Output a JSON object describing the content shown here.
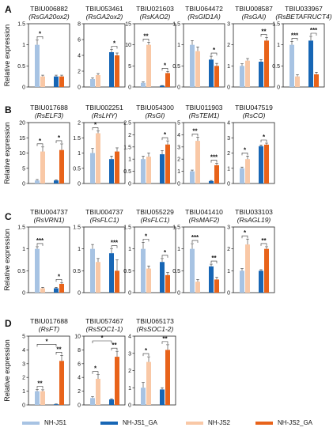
{
  "colors": {
    "NH-JS1": "#a7c3e3",
    "NH-JS1_GA": "#1766b5",
    "NH-JS2": "#f9c8a6",
    "NH-JS2_GA": "#e8631a"
  },
  "y_axis_label": "Relative expression",
  "legend": [
    "NH-JS1",
    "NH-JS1_GA",
    "NH-JS2",
    "NH-JS2_GA"
  ],
  "chart_data": [
    {
      "panel": "A",
      "type": "bar",
      "title": "TBIU006882",
      "subtitle": "(RsGA20ox2)",
      "categories": [
        "NH-JS1",
        "NH-JS1_GA",
        "NH-JS2",
        "NH-JS2_GA"
      ],
      "values": [
        1.0,
        0.25,
        0.25,
        0.25
      ],
      "errors": [
        0.12,
        0.03,
        0.03,
        0.03
      ],
      "ylim": [
        0,
        1.5
      ],
      "yticks": [
        0,
        0.5,
        1,
        1.5
      ],
      "significance": [
        {
          "a": 0,
          "b": 2,
          "label": "*"
        }
      ]
    },
    {
      "panel": "A",
      "type": "bar",
      "title": "TBIU053461",
      "subtitle": "(RsGA2ox2)",
      "categories": [
        "NH-JS1",
        "NH-JS1_GA",
        "NH-JS2",
        "NH-JS2_GA"
      ],
      "values": [
        1.0,
        4.4,
        1.5,
        4.0
      ],
      "errors": [
        0.15,
        0.35,
        0.2,
        0.3
      ],
      "ylim": [
        0,
        8
      ],
      "yticks": [
        0,
        2,
        4,
        6,
        8
      ],
      "significance": [
        {
          "a": 1,
          "b": 3,
          "label": "*"
        }
      ]
    },
    {
      "panel": "A",
      "type": "bar",
      "title": "TBIU021603",
      "subtitle": "(RsKAO2)",
      "categories": [
        "NH-JS1",
        "NH-JS1_GA",
        "NH-JS2",
        "NH-JS2_GA"
      ],
      "values": [
        1.0,
        0.3,
        10.0,
        3.3
      ],
      "errors": [
        0.2,
        0.05,
        0.6,
        0.4
      ],
      "ylim": [
        0,
        15
      ],
      "yticks": [
        0,
        5,
        10,
        15
      ],
      "significance": [
        {
          "a": 0,
          "b": 2,
          "label": "**"
        },
        {
          "a": 1,
          "b": 3,
          "label": "*"
        }
      ]
    },
    {
      "panel": "A",
      "type": "bar",
      "title": "TBIU064472",
      "subtitle": "(RsGID1A)",
      "categories": [
        "NH-JS1",
        "NH-JS1_GA",
        "NH-JS2",
        "NH-JS2_GA"
      ],
      "values": [
        1.0,
        0.65,
        0.85,
        0.5
      ],
      "errors": [
        0.1,
        0.08,
        0.1,
        0.06
      ],
      "ylim": [
        0,
        1.5
      ],
      "yticks": [
        0,
        0.5,
        1,
        1.5
      ],
      "significance": [
        {
          "a": 1,
          "b": 3,
          "label": "*"
        }
      ]
    },
    {
      "panel": "A",
      "type": "bar",
      "title": "TBIU008587",
      "subtitle": "(RsGAI)",
      "categories": [
        "NH-JS1",
        "NH-JS1_GA",
        "NH-JS2",
        "NH-JS2_GA"
      ],
      "values": [
        1.0,
        1.2,
        1.25,
        2.2
      ],
      "errors": [
        0.1,
        0.1,
        0.1,
        0.15
      ],
      "ylim": [
        0,
        3
      ],
      "yticks": [
        0,
        1,
        2,
        3
      ],
      "significance": [
        {
          "a": 1,
          "b": 3,
          "label": "**"
        }
      ]
    },
    {
      "panel": "A",
      "type": "bar",
      "title": "TBIU033967",
      "subtitle": "(RsBETAFRUCT4)",
      "categories": [
        "NH-JS1",
        "NH-JS1_GA",
        "NH-JS2",
        "NH-JS2_GA"
      ],
      "values": [
        1.0,
        1.1,
        0.25,
        0.3
      ],
      "errors": [
        0.08,
        0.1,
        0.04,
        0.05
      ],
      "ylim": [
        0,
        1.5
      ],
      "yticks": [
        0,
        0.5,
        1,
        1.5
      ],
      "significance": [
        {
          "a": 0,
          "b": 2,
          "label": "***"
        },
        {
          "a": 1,
          "b": 3,
          "label": "***"
        }
      ]
    },
    {
      "panel": "B",
      "type": "bar",
      "title": "TBIU017688",
      "subtitle": "(RsELF3)",
      "categories": [
        "NH-JS1",
        "NH-JS1_GA",
        "NH-JS2",
        "NH-JS2_GA"
      ],
      "values": [
        1.0,
        1.0,
        10.5,
        11.0
      ],
      "errors": [
        0.3,
        0.2,
        1.5,
        2.0
      ],
      "ylim": [
        0,
        20
      ],
      "yticks": [
        0,
        5,
        10,
        15,
        20
      ],
      "significance": [
        {
          "a": 0,
          "b": 2,
          "label": "*"
        },
        {
          "a": 1,
          "b": 3,
          "label": "*"
        }
      ]
    },
    {
      "panel": "B",
      "type": "bar",
      "title": "TBIU002251",
      "subtitle": "(RsLHY)",
      "categories": [
        "NH-JS1",
        "NH-JS1_GA",
        "NH-JS2",
        "NH-JS2_GA"
      ],
      "values": [
        1.0,
        0.8,
        1.65,
        1.05
      ],
      "errors": [
        0.15,
        0.1,
        0.08,
        0.12
      ],
      "ylim": [
        0,
        2
      ],
      "yticks": [
        0,
        0.5,
        1,
        1.5,
        2
      ],
      "significance": [
        {
          "a": 0,
          "b": 2,
          "label": "*"
        }
      ]
    },
    {
      "panel": "B",
      "type": "bar",
      "title": "TBIU054300",
      "subtitle": "(RsGI)",
      "categories": [
        "NH-JS1",
        "NH-JS1_GA",
        "NH-JS2",
        "NH-JS2_GA"
      ],
      "values": [
        1.0,
        1.2,
        1.1,
        1.6
      ],
      "errors": [
        0.12,
        0.15,
        0.15,
        0.15
      ],
      "ylim": [
        0,
        2.5
      ],
      "yticks": [
        0,
        0.5,
        1,
        1.5,
        2,
        2.5
      ],
      "significance": [
        {
          "a": 1,
          "b": 3,
          "label": "*"
        }
      ]
    },
    {
      "panel": "B",
      "type": "bar",
      "title": "TBIU011903",
      "subtitle": "(RsTEM1)",
      "categories": [
        "NH-JS1",
        "NH-JS1_GA",
        "NH-JS2",
        "NH-JS2_GA"
      ],
      "values": [
        1.0,
        0.2,
        3.5,
        1.5
      ],
      "errors": [
        0.1,
        0.05,
        0.3,
        0.15
      ],
      "ylim": [
        0,
        5
      ],
      "yticks": [
        0,
        1,
        2,
        3,
        4,
        5
      ],
      "significance": [
        {
          "a": 0,
          "b": 2,
          "label": "**"
        },
        {
          "a": 1,
          "b": 3,
          "label": "***"
        }
      ]
    },
    {
      "panel": "B",
      "type": "bar",
      "title": "TBIU047519",
      "subtitle": "(RsCO)",
      "categories": [
        "NH-JS1",
        "NH-JS1_GA",
        "NH-JS2",
        "NH-JS2_GA"
      ],
      "values": [
        1.0,
        2.45,
        1.6,
        2.55
      ],
      "errors": [
        0.08,
        0.08,
        0.2,
        0.1
      ],
      "ylim": [
        0,
        4
      ],
      "yticks": [
        0,
        1,
        2,
        3,
        4
      ],
      "significance": [
        {
          "a": 0,
          "b": 2,
          "label": "*"
        },
        {
          "a": 1,
          "b": 3,
          "label": "*"
        }
      ]
    },
    {
      "panel": "C",
      "type": "bar",
      "title": "TBIU004737",
      "subtitle": "(RsVRN1)",
      "categories": [
        "NH-JS1",
        "NH-JS1_GA",
        "NH-JS2",
        "NH-JS2_GA"
      ],
      "values": [
        1.0,
        0.1,
        0.1,
        0.2
      ],
      "errors": [
        0.05,
        0.02,
        0.02,
        0.03
      ],
      "ylim": [
        0,
        1.5
      ],
      "yticks": [
        0,
        0.5,
        1,
        1.5
      ],
      "significance": [
        {
          "a": 0,
          "b": 2,
          "label": "***"
        },
        {
          "a": 1,
          "b": 3,
          "label": "*"
        }
      ]
    },
    {
      "panel": "C",
      "type": "bar",
      "title": "TBIU004737",
      "subtitle": "(RsFLC1)",
      "categories": [
        "NH-JS1",
        "NH-JS1_GA",
        "NH-JS2",
        "NH-JS2_GA"
      ],
      "values": [
        1.0,
        0.9,
        0.7,
        0.5
      ],
      "errors": [
        0.1,
        0.1,
        0.08,
        0.25
      ],
      "ylim": [
        0,
        1.5
      ],
      "yticks": [
        0,
        0.5,
        1,
        1.5
      ],
      "significance": [
        {
          "a": 1,
          "b": 3,
          "label": "***"
        }
      ]
    },
    {
      "panel": "C",
      "type": "bar",
      "title": "TBIU055229",
      "subtitle": "(RsFLC1)",
      "categories": [
        "NH-JS1",
        "NH-JS1_GA",
        "NH-JS2",
        "NH-JS2_GA"
      ],
      "values": [
        1.0,
        0.7,
        0.55,
        0.4
      ],
      "errors": [
        0.15,
        0.08,
        0.06,
        0.06
      ],
      "ylim": [
        0,
        1.5
      ],
      "yticks": [
        0,
        0.5,
        1,
        1.5
      ],
      "significance": [
        {
          "a": 0,
          "b": 2,
          "label": "*"
        },
        {
          "a": 1,
          "b": 3,
          "label": "*"
        }
      ]
    },
    {
      "panel": "C",
      "type": "bar",
      "title": "TBIU041410",
      "subtitle": "(RsMAF2)",
      "categories": [
        "NH-JS1",
        "NH-JS1_GA",
        "NH-JS2",
        "NH-JS2_GA"
      ],
      "values": [
        1.0,
        0.6,
        0.25,
        0.3
      ],
      "errors": [
        0.12,
        0.05,
        0.05,
        0.05
      ],
      "ylim": [
        0,
        1.5
      ],
      "yticks": [
        0,
        0.5,
        1,
        1.5
      ],
      "significance": [
        {
          "a": 0,
          "b": 2,
          "label": "***"
        },
        {
          "a": 1,
          "b": 3,
          "label": "**"
        }
      ]
    },
    {
      "panel": "C",
      "type": "bar",
      "title": "TBIU033103",
      "subtitle": "(RsAGL19)",
      "categories": [
        "NH-JS1",
        "NH-JS1_GA",
        "NH-JS2",
        "NH-JS2_GA"
      ],
      "values": [
        1.0,
        1.0,
        2.2,
        2.0
      ],
      "errors": [
        0.1,
        0.05,
        0.25,
        0.1
      ],
      "ylim": [
        0,
        3
      ],
      "yticks": [
        0,
        1,
        2,
        3
      ],
      "significance": [
        {
          "a": 0,
          "b": 2,
          "label": "*"
        },
        {
          "a": 1,
          "b": 3,
          "label": "**"
        }
      ]
    },
    {
      "panel": "D",
      "type": "bar",
      "title": "TBIU017688",
      "subtitle": "(RsFT)",
      "categories": [
        "NH-JS1",
        "NH-JS1_GA",
        "NH-JS2",
        "NH-JS2_GA"
      ],
      "values": [
        1.0,
        0.05,
        1.0,
        3.2
      ],
      "errors": [
        0.12,
        0.02,
        0.1,
        0.4
      ],
      "ylim": [
        0,
        5
      ],
      "yticks": [
        0,
        1,
        2,
        3,
        4,
        5
      ],
      "significance": [
        {
          "a": 0,
          "b": 2,
          "label": "**"
        },
        {
          "a": 1,
          "b": 3,
          "label": "**"
        },
        {
          "a": 0,
          "b": 1,
          "label": "*"
        }
      ]
    },
    {
      "panel": "D",
      "type": "bar",
      "title": "TBIU057467",
      "subtitle": "(RsSOC1-1)",
      "categories": [
        "NH-JS1",
        "NH-JS1_GA",
        "NH-JS2",
        "NH-JS2_GA"
      ],
      "values": [
        1.0,
        0.8,
        3.8,
        7.0
      ],
      "errors": [
        0.2,
        0.1,
        0.6,
        0.8
      ],
      "ylim": [
        0,
        10
      ],
      "yticks": [
        0,
        2,
        4,
        6,
        8,
        10
      ],
      "significance": [
        {
          "a": 0,
          "b": 2,
          "label": "*"
        },
        {
          "a": 1,
          "b": 3,
          "label": "**"
        },
        {
          "a": 0,
          "b": 1,
          "label": "*"
        }
      ]
    },
    {
      "panel": "D",
      "type": "bar",
      "title": "TBIU065173",
      "subtitle": "(RsSOC1-2)",
      "categories": [
        "NH-JS1",
        "NH-JS1_GA",
        "NH-JS2",
        "NH-JS2_GA"
      ],
      "values": [
        1.0,
        0.9,
        2.5,
        3.2
      ],
      "errors": [
        0.3,
        0.1,
        0.3,
        0.3
      ],
      "ylim": [
        0,
        4
      ],
      "yticks": [
        0,
        1,
        2,
        3,
        4
      ],
      "significance": [
        {
          "a": 0,
          "b": 2,
          "label": "*"
        },
        {
          "a": 1,
          "b": 3,
          "label": "**"
        }
      ]
    }
  ]
}
